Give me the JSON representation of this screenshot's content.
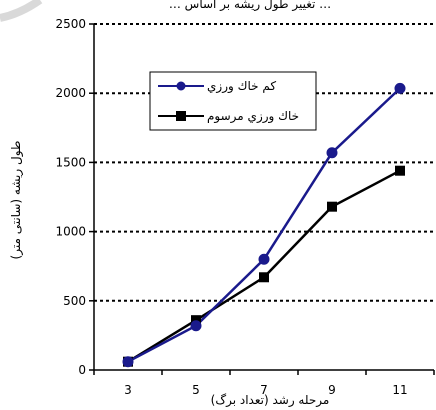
{
  "chart_data": {
    "type": "line",
    "title": "… تغيير طول ريشه بر اساس …",
    "xlabel": "مرحله رشد (تعداد برگ)",
    "ylabel": "طول ريشه (سانتی متر)",
    "x": [
      3,
      5,
      7,
      9,
      11
    ],
    "xticks": [
      "3",
      "5",
      "7",
      "9",
      "11"
    ],
    "ylim": [
      0,
      2500
    ],
    "yticks": [
      0,
      500,
      1000,
      1500,
      2000,
      2500
    ],
    "grid": "horizontal-dotted",
    "legend_position": "upper-left",
    "series": [
      {
        "name": "كم خاك ورزي",
        "values": [
          60,
          320,
          800,
          1570,
          2035
        ],
        "color": "#1a1a8c",
        "marker": "circle"
      },
      {
        "name": "خاك ورزي مرسوم",
        "values": [
          60,
          360,
          670,
          1180,
          1440
        ],
        "color": "#000000",
        "marker": "square"
      }
    ]
  }
}
